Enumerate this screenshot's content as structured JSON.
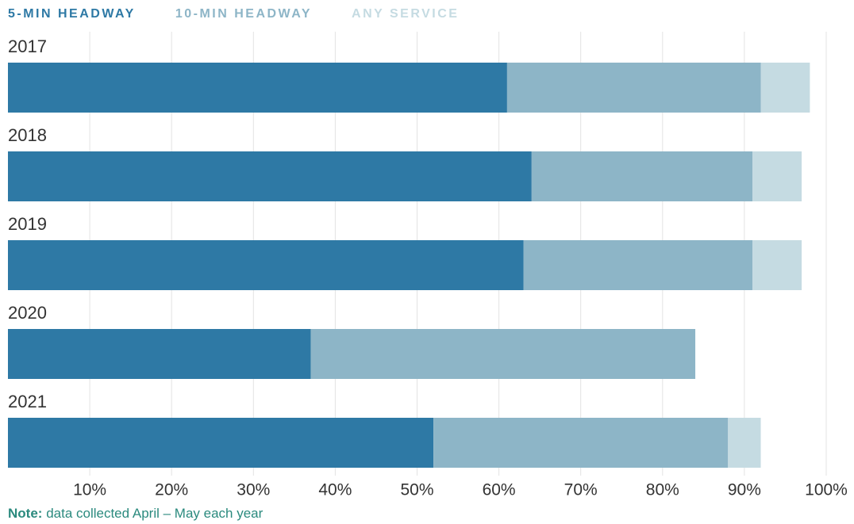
{
  "chart_data": {
    "type": "stacked-bar-horizontal",
    "categories": [
      "2017",
      "2018",
      "2019",
      "2020",
      "2021"
    ],
    "series": [
      {
        "name": "5-MIN HEADWAY",
        "color": "#2e79a5",
        "values": [
          61,
          64,
          63,
          37,
          52
        ]
      },
      {
        "name": "10-MIN HEADWAY",
        "color": "#8db5c7",
        "values": [
          31,
          27,
          28,
          47,
          36
        ]
      },
      {
        "name": "ANY SERVICE",
        "color": "#c5dbe2",
        "values": [
          6,
          6,
          6,
          0,
          4
        ]
      }
    ],
    "xlim": [
      0,
      100
    ],
    "xticks": [
      {
        "value": 10,
        "label": "10%"
      },
      {
        "value": 20,
        "label": "20%"
      },
      {
        "value": 30,
        "label": "30%"
      },
      {
        "value": 40,
        "label": "40%"
      },
      {
        "value": 50,
        "label": "50%"
      },
      {
        "value": 60,
        "label": "60%"
      },
      {
        "value": 70,
        "label": "70%"
      },
      {
        "value": 80,
        "label": "80%"
      },
      {
        "value": 90,
        "label": "90%"
      },
      {
        "value": 100,
        "label": "100%"
      }
    ],
    "grid": true,
    "note": {
      "label": "Note:",
      "text": "data collected April – May each year"
    }
  }
}
